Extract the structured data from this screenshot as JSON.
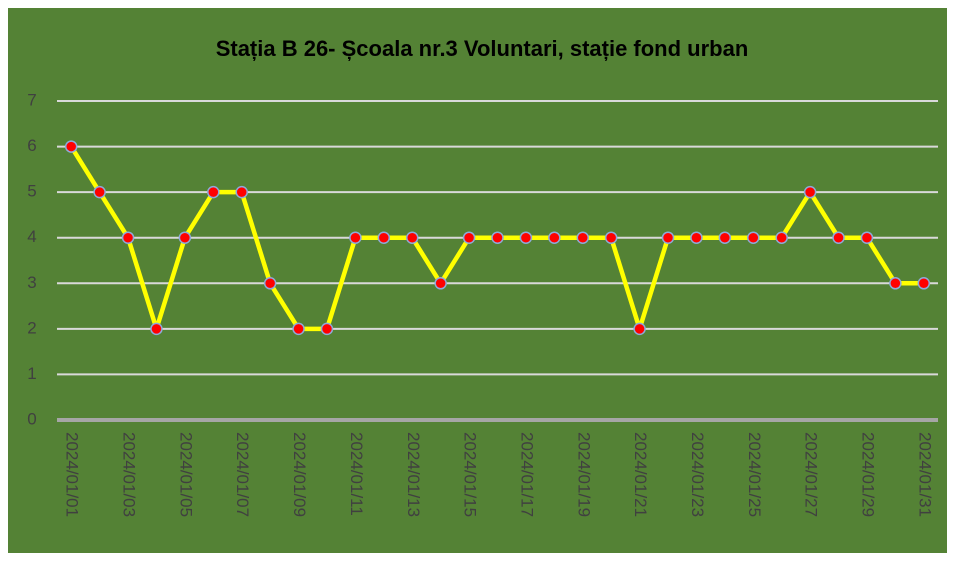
{
  "chart_data": {
    "type": "line",
    "title": "Stația B 26- Școala  nr.3 Voluntari, stație fond urban",
    "categories": [
      "2024/01/01",
      null,
      "2024/01/03",
      null,
      "2024/01/05",
      null,
      "2024/01/07",
      null,
      "2024/01/09",
      null,
      "2024/01/11",
      null,
      "2024/01/13",
      null,
      "2024/01/15",
      null,
      "2024/01/17",
      null,
      "2024/01/19",
      null,
      "2024/01/21",
      null,
      "2024/01/23",
      null,
      "2024/01/25",
      null,
      "2024/01/27",
      null,
      "2024/01/29",
      null,
      "2024/01/31"
    ],
    "values": [
      6,
      5,
      4,
      2,
      4,
      5,
      5,
      3,
      2,
      2,
      4,
      4,
      4,
      3,
      4,
      4,
      4,
      4,
      4,
      4,
      2,
      4,
      4,
      4,
      4,
      4,
      5,
      4,
      4,
      3,
      3
    ],
    "color": "#ffff00",
    "marker_color": "#ff0000",
    "background": "#548235",
    "ylim": [
      0,
      7
    ],
    "yticks": [
      0,
      1,
      2,
      3,
      4,
      5,
      6,
      7
    ],
    "grid": true
  }
}
